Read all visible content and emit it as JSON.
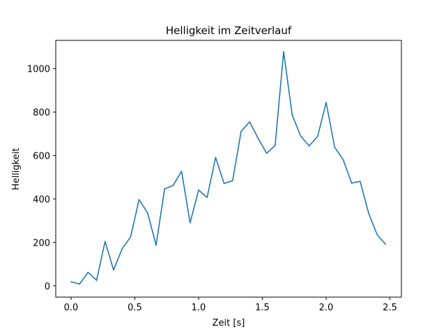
{
  "chart_data": {
    "type": "line",
    "title": "Helligkeit im Zeitverlauf",
    "xlabel": "Zeit [s]",
    "ylabel": "Helligkeit",
    "xlim": [
      -0.12,
      2.59
    ],
    "ylim": [
      -52,
      1130
    ],
    "xticks": [
      0.0,
      0.5,
      1.0,
      1.5,
      2.0,
      2.5
    ],
    "xtick_labels": [
      "0.0",
      "0.5",
      "1.0",
      "1.5",
      "2.0",
      "2.5"
    ],
    "yticks": [
      0,
      200,
      400,
      600,
      800,
      1000
    ],
    "ytick_labels": [
      "0",
      "200",
      "400",
      "600",
      "800",
      "1000"
    ],
    "grid": false,
    "series": [
      {
        "name": "Helligkeit",
        "color": "#1f77b4",
        "x": [
          0.0,
          0.0667,
          0.1333,
          0.2,
          0.2667,
          0.3333,
          0.4,
          0.4667,
          0.5333,
          0.6,
          0.6667,
          0.7333,
          0.8,
          0.8667,
          0.9333,
          1.0,
          1.0667,
          1.1333,
          1.2,
          1.2667,
          1.3333,
          1.4,
          1.4667,
          1.5333,
          1.6,
          1.6667,
          1.7333,
          1.8,
          1.8667,
          1.9333,
          2.0,
          2.0667,
          2.1333,
          2.2,
          2.2667,
          2.3333,
          2.4,
          2.4667
        ],
        "values": [
          19,
          8,
          62,
          25,
          204,
          73,
          170,
          225,
          397,
          336,
          187,
          446,
          462,
          527,
          290,
          441,
          407,
          591,
          471,
          484,
          711,
          755,
          679,
          610,
          646,
          1078,
          788,
          690,
          644,
          688,
          844,
          638,
          581,
          473,
          481,
          334,
          235,
          191
        ]
      }
    ]
  }
}
